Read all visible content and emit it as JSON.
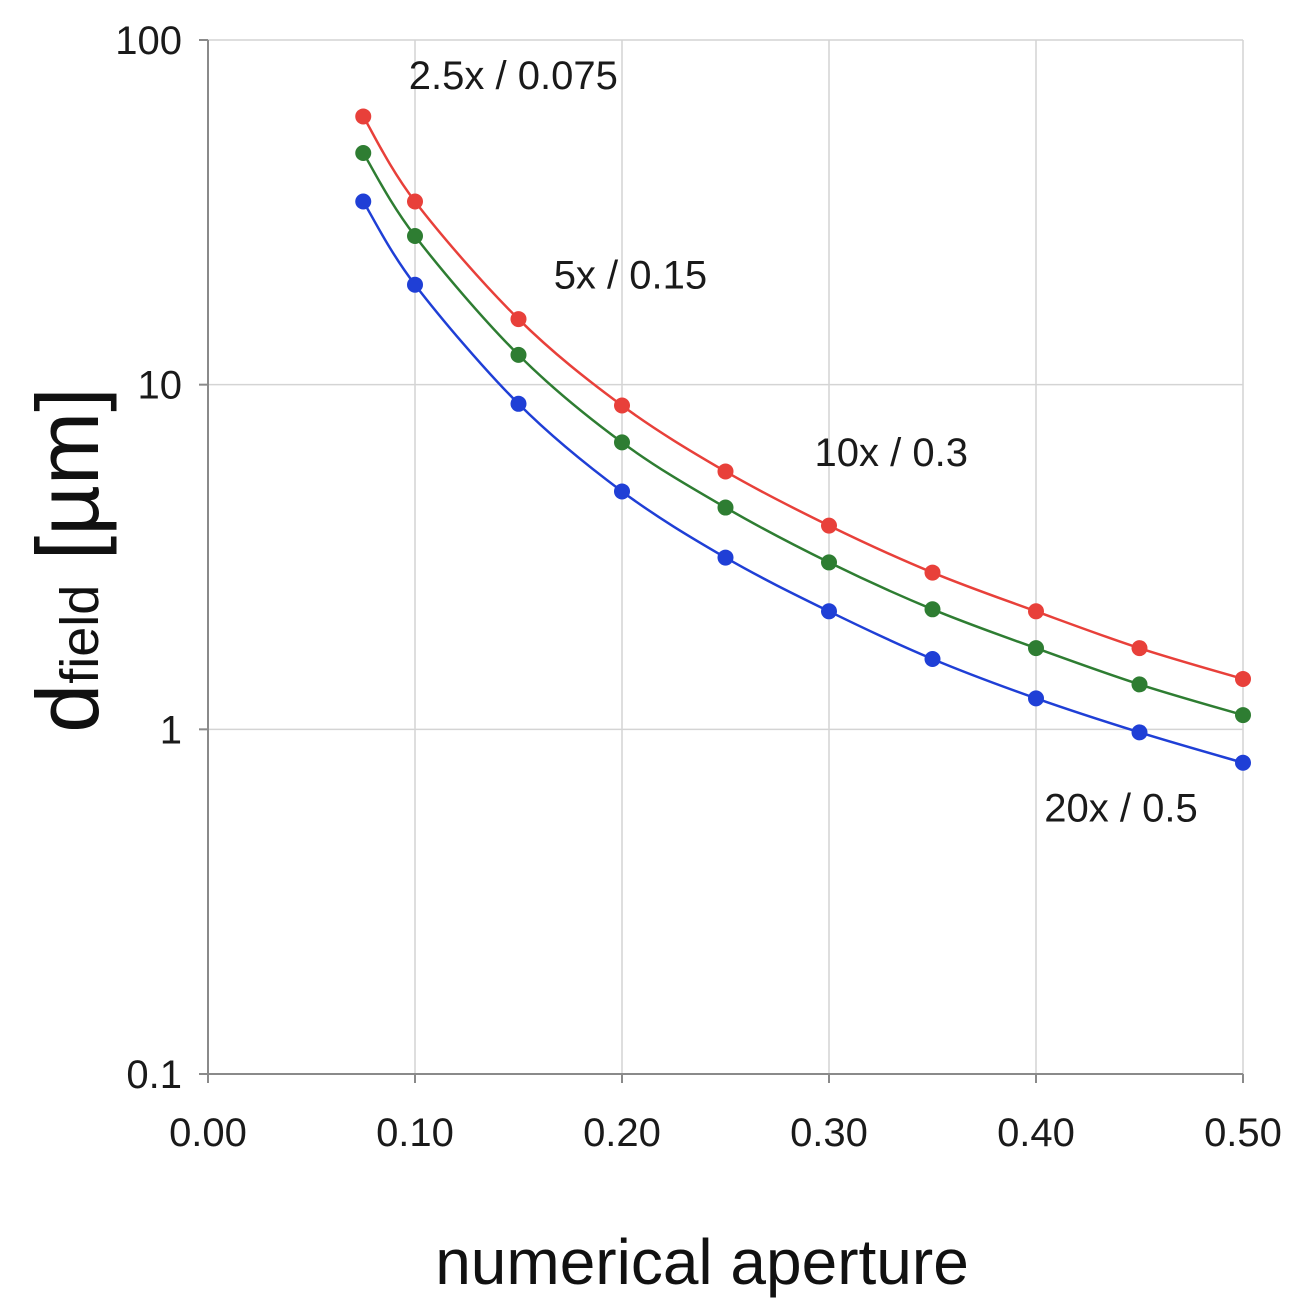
{
  "chart_data": {
    "type": "line",
    "title": "",
    "xlabel": "numerical aperture",
    "ylabel": "d",
    "ylabel_sub": "field",
    "ylabel_unit": " [µm]",
    "x_scale": "linear",
    "y_scale": "log",
    "xlim": [
      0.0,
      0.5
    ],
    "ylim": [
      0.1,
      100
    ],
    "x_ticks": [
      0.0,
      0.1,
      0.2,
      0.3,
      0.4,
      0.5
    ],
    "x_tick_labels": [
      "0.00",
      "0.10",
      "0.20",
      "0.30",
      "0.40",
      "0.50"
    ],
    "y_ticks": [
      0.1,
      1,
      10,
      100
    ],
    "y_tick_labels": [
      "0.1",
      "1",
      "10",
      "100"
    ],
    "grid": true,
    "x": [
      0.075,
      0.1,
      0.15,
      0.2,
      0.25,
      0.3,
      0.35,
      0.4,
      0.45,
      0.5
    ],
    "series": [
      {
        "color": "#e8403a",
        "values": [
          60,
          34,
          15.5,
          8.7,
          5.6,
          3.9,
          2.85,
          2.2,
          1.72,
          1.4
        ]
      },
      {
        "color": "#2e7d32",
        "values": [
          47,
          27,
          12.2,
          6.8,
          4.4,
          3.05,
          2.23,
          1.72,
          1.35,
          1.1
        ]
      },
      {
        "color": "#1f3fd6",
        "values": [
          34,
          19.5,
          8.8,
          4.9,
          3.15,
          2.2,
          1.6,
          1.23,
          0.98,
          0.8
        ]
      }
    ],
    "annotations": [
      {
        "text": "2.5x / 0.075",
        "x": 0.097,
        "y": 72
      },
      {
        "text": "5x / 0.15",
        "x": 0.167,
        "y": 19
      },
      {
        "text": "10x / 0.3",
        "x": 0.293,
        "y": 5.8
      },
      {
        "text": "20x / 0.5",
        "x": 0.404,
        "y": 0.54
      }
    ]
  }
}
